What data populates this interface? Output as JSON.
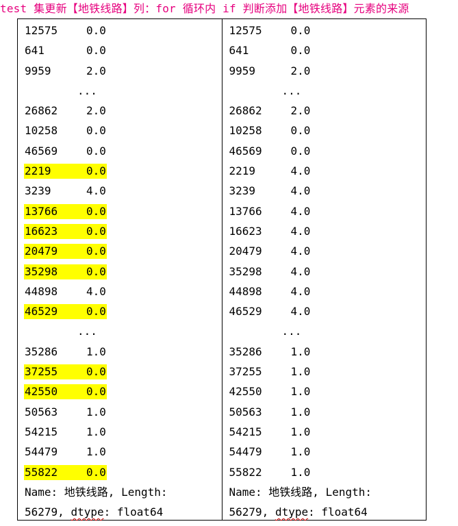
{
  "title": "test 集更新【地铁线路】列：for 循环内 if 判断添加【地铁线路】元素的来源",
  "highlight_color": "#ffff00",
  "title_color": "#e6007e",
  "left": {
    "rows": [
      {
        "idx": "12575",
        "val": "0.0",
        "hl": false
      },
      {
        "idx": "641",
        "val": "0.0",
        "hl": false
      },
      {
        "idx": "9959",
        "val": "2.0",
        "hl": false
      },
      {
        "ellipsis": "..."
      },
      {
        "idx": "26862",
        "val": "2.0",
        "hl": false
      },
      {
        "idx": "10258",
        "val": "0.0",
        "hl": false
      },
      {
        "idx": "46569",
        "val": "0.0",
        "hl": false
      },
      {
        "idx": "2219",
        "val": "0.0",
        "hl": true
      },
      {
        "idx": "3239",
        "val": "4.0",
        "hl": false
      },
      {
        "idx": "13766",
        "val": "0.0",
        "hl": true
      },
      {
        "idx": "16623",
        "val": "0.0",
        "hl": true
      },
      {
        "idx": "20479",
        "val": "0.0",
        "hl": true
      },
      {
        "idx": "35298",
        "val": "0.0",
        "hl": true
      },
      {
        "idx": "44898",
        "val": "4.0",
        "hl": false
      },
      {
        "idx": "46529",
        "val": "0.0",
        "hl": true
      },
      {
        "ellipsis": "..."
      },
      {
        "idx": "35286",
        "val": "1.0",
        "hl": false
      },
      {
        "idx": "37255",
        "val": "0.0",
        "hl": true
      },
      {
        "idx": "42550",
        "val": "0.0",
        "hl": true
      },
      {
        "idx": "50563",
        "val": "1.0",
        "hl": false
      },
      {
        "idx": "54215",
        "val": "1.0",
        "hl": false
      },
      {
        "idx": "54479",
        "val": "1.0",
        "hl": false
      },
      {
        "idx": "55822",
        "val": "0.0",
        "hl": true
      }
    ],
    "footer_line1": "Name: 地铁线路, Length:",
    "footer_line2_prefix": "56279, ",
    "footer_dtype": "dtype",
    "footer_line2_suffix": ": float64"
  },
  "right": {
    "rows": [
      {
        "idx": "12575",
        "val": "0.0",
        "hl": false
      },
      {
        "idx": "641",
        "val": "0.0",
        "hl": false
      },
      {
        "idx": "9959",
        "val": "2.0",
        "hl": false
      },
      {
        "ellipsis": "..."
      },
      {
        "idx": "26862",
        "val": "2.0",
        "hl": false
      },
      {
        "idx": "10258",
        "val": "0.0",
        "hl": false
      },
      {
        "idx": "46569",
        "val": "0.0",
        "hl": false
      },
      {
        "idx": "2219",
        "val": "4.0",
        "hl": false
      },
      {
        "idx": "3239",
        "val": "4.0",
        "hl": false
      },
      {
        "idx": "13766",
        "val": "4.0",
        "hl": false
      },
      {
        "idx": "16623",
        "val": "4.0",
        "hl": false
      },
      {
        "idx": "20479",
        "val": "4.0",
        "hl": false
      },
      {
        "idx": "35298",
        "val": "4.0",
        "hl": false
      },
      {
        "idx": "44898",
        "val": "4.0",
        "hl": false
      },
      {
        "idx": "46529",
        "val": "4.0",
        "hl": false
      },
      {
        "ellipsis": "..."
      },
      {
        "idx": "35286",
        "val": "1.0",
        "hl": false
      },
      {
        "idx": "37255",
        "val": "1.0",
        "hl": false
      },
      {
        "idx": "42550",
        "val": "1.0",
        "hl": false
      },
      {
        "idx": "50563",
        "val": "1.0",
        "hl": false
      },
      {
        "idx": "54215",
        "val": "1.0",
        "hl": false
      },
      {
        "idx": "54479",
        "val": "1.0",
        "hl": false
      },
      {
        "idx": "55822",
        "val": "1.0",
        "hl": false
      }
    ],
    "footer_line1": "Name: 地铁线路, Length:",
    "footer_line2_prefix": "56279, ",
    "footer_dtype": "dtype",
    "footer_line2_suffix": ": float64"
  }
}
